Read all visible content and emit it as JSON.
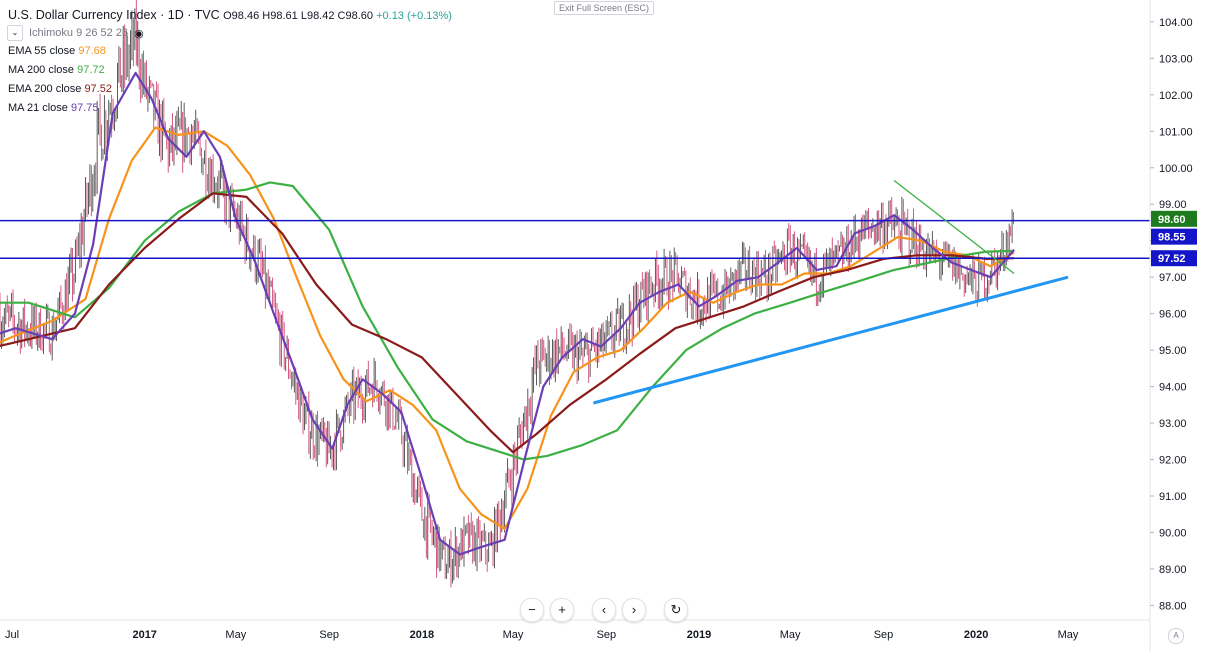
{
  "header": {
    "symbol": "U.S. Dollar Currency Index · 1D · TVC",
    "open": "O98.46",
    "high": "H98.61",
    "low": "L98.42",
    "close": "C98.60",
    "change": "+0.13 (+0.13%)"
  },
  "indicator_toggle": {
    "label": "Ichimoku 9 26 52 26"
  },
  "indicators": [
    {
      "name": "EMA 55 close",
      "value": "97.68",
      "color": "#f7931a"
    },
    {
      "name": "MA 200 close",
      "value": "97.72",
      "color": "#3cb043"
    },
    {
      "name": "EMA 200 close",
      "value": "97.52",
      "color": "#8b1a1a"
    },
    {
      "name": "MA 21 close",
      "value": "97.75",
      "color": "#6a3fb5"
    }
  ],
  "exit_fullscreen": "Exit Full Screen (ESC)",
  "toolbar": {
    "zoom_out": "−",
    "zoom_in": "+",
    "back": "‹",
    "forward": "›",
    "reset": "↻"
  },
  "auto_scale": "A",
  "chart_data": {
    "type": "line",
    "x_axis_labels": [
      "Jul",
      "2017",
      "May",
      "Sep",
      "2018",
      "May",
      "Sep",
      "2019",
      "May",
      "Sep",
      "2020",
      "May"
    ],
    "x_axis_label_dates": [
      "2016-07-01",
      "2017-01-01",
      "2017-05-01",
      "2017-09-01",
      "2018-01-01",
      "2018-05-01",
      "2018-09-01",
      "2019-01-01",
      "2019-05-01",
      "2019-09-01",
      "2020-01-01",
      "2020-05-01"
    ],
    "y_ticks": [
      "104.00",
      "103.00",
      "102.00",
      "101.00",
      "100.00",
      "99.00",
      "98.00",
      "97.00",
      "96.00",
      "95.00",
      "94.00",
      "93.00",
      "92.00",
      "91.00",
      "90.00",
      "89.00",
      "88.00"
    ],
    "ylim": [
      87.6,
      104.6
    ],
    "price_labels": [
      {
        "value": 98.6,
        "text": "98.60",
        "color": "#1e7a1e"
      },
      {
        "value": 98.55,
        "text": "98.55",
        "color": "#1414c8"
      },
      {
        "value": 97.52,
        "text": "97.52",
        "color": "#1414c8"
      }
    ],
    "horizontal_lines": [
      {
        "y": 98.55,
        "color": "#1414c8"
      },
      {
        "y": 97.52,
        "color": "#1414c8"
      }
    ],
    "trendlines": [
      {
        "name": "support",
        "color": "#2196f3",
        "x1": "2018-08-15",
        "y1": 93.55,
        "x2": "2020-05-01",
        "y2": 97.0
      },
      {
        "name": "resistance",
        "color": "#3cb043",
        "x1": "2019-09-15",
        "y1": 99.65,
        "x2": "2020-02-20",
        "y2": 97.1
      }
    ],
    "price": {
      "dates": [
        "2016-06-01",
        "2016-07-01",
        "2016-08-01",
        "2016-09-01",
        "2016-10-01",
        "2016-11-01",
        "2016-12-01",
        "2016-12-20",
        "2017-01-01",
        "2017-02-01",
        "2017-03-01",
        "2017-04-01",
        "2017-05-01",
        "2017-06-01",
        "2017-07-01",
        "2017-08-01",
        "2017-09-01",
        "2017-10-01",
        "2017-11-01",
        "2017-12-01",
        "2018-01-01",
        "2018-02-01",
        "2018-03-01",
        "2018-04-01",
        "2018-05-01",
        "2018-06-01",
        "2018-07-01",
        "2018-08-01",
        "2018-09-01",
        "2018-10-01",
        "2018-11-01",
        "2018-12-01",
        "2019-01-01",
        "2019-02-01",
        "2019-03-01",
        "2019-04-01",
        "2019-05-01",
        "2019-06-01",
        "2019-07-01",
        "2019-08-01",
        "2019-09-01",
        "2019-10-01",
        "2019-11-01",
        "2019-12-01",
        "2020-01-01",
        "2020-02-01",
        "2020-02-20"
      ],
      "close": [
        96.2,
        95.8,
        95.6,
        95.5,
        97.2,
        100.8,
        102.6,
        103.5,
        102.2,
        100.5,
        101.0,
        99.8,
        98.6,
        97.3,
        95.2,
        93.0,
        92.2,
        93.6,
        94.2,
        93.0,
        90.5,
        89.1,
        89.8,
        89.5,
        91.8,
        94.6,
        95.0,
        94.8,
        95.2,
        95.9,
        96.9,
        97.0,
        96.3,
        96.5,
        97.2,
        97.0,
        97.8,
        97.0,
        97.4,
        98.2,
        98.5,
        98.2,
        97.6,
        97.3,
        96.8,
        97.4,
        98.6
      ],
      "range": [
        1.0,
        1.2,
        1.1,
        1.0,
        1.2,
        1.6,
        1.6,
        1.4,
        1.4,
        1.3,
        1.2,
        1.2,
        1.1,
        1.2,
        1.1,
        1.1,
        1.1,
        1.1,
        1.0,
        1.0,
        1.2,
        1.1,
        1.0,
        1.0,
        1.2,
        1.2,
        1.1,
        1.1,
        1.1,
        1.1,
        1.1,
        1.0,
        1.1,
        1.0,
        1.0,
        1.0,
        1.0,
        1.1,
        1.0,
        1.0,
        1.1,
        1.1,
        1.0,
        1.0,
        1.0,
        1.0,
        0.6
      ]
    },
    "series": [
      {
        "id": "ema55",
        "color": "#f7931a",
        "dates": [
          "2016-06-01",
          "2016-07-15",
          "2016-09-01",
          "2016-10-15",
          "2016-11-15",
          "2016-12-15",
          "2017-01-15",
          "2017-02-15",
          "2017-03-20",
          "2017-04-20",
          "2017-05-20",
          "2017-06-20",
          "2017-07-20",
          "2017-08-20",
          "2017-09-20",
          "2017-10-20",
          "2017-11-20",
          "2017-12-20",
          "2018-01-20",
          "2018-02-20",
          "2018-03-20",
          "2018-04-20",
          "2018-05-20",
          "2018-06-20",
          "2018-07-20",
          "2018-08-20",
          "2018-09-20",
          "2018-10-20",
          "2018-11-20",
          "2018-12-20",
          "2019-01-20",
          "2019-02-20",
          "2019-03-20",
          "2019-04-20",
          "2019-05-20",
          "2019-06-20",
          "2019-07-20",
          "2019-08-20",
          "2019-09-20",
          "2019-10-20",
          "2019-11-20",
          "2019-12-20",
          "2020-01-20",
          "2020-02-20"
        ],
        "values": [
          95.0,
          95.4,
          95.8,
          96.4,
          98.6,
          100.2,
          101.1,
          100.9,
          101.0,
          100.6,
          99.8,
          98.6,
          97.0,
          95.4,
          94.2,
          93.6,
          93.9,
          93.5,
          92.8,
          91.2,
          90.5,
          90.1,
          91.2,
          93.2,
          94.4,
          94.8,
          95.0,
          95.6,
          96.3,
          96.6,
          96.3,
          96.6,
          96.8,
          96.8,
          97.1,
          97.1,
          97.3,
          97.7,
          98.1,
          98.0,
          97.7,
          97.6,
          97.3,
          97.68
        ]
      },
      {
        "id": "ma200",
        "color": "#3cb043",
        "dates": [
          "2016-06-01",
          "2016-08-01",
          "2016-10-01",
          "2016-11-15",
          "2017-01-01",
          "2017-02-15",
          "2017-04-01",
          "2017-05-15",
          "2017-06-15",
          "2017-07-15",
          "2017-09-01",
          "2017-10-15",
          "2017-12-01",
          "2018-01-15",
          "2018-03-01",
          "2018-04-15",
          "2018-05-15",
          "2018-06-15",
          "2018-08-01",
          "2018-09-15",
          "2018-11-01",
          "2018-12-15",
          "2019-02-01",
          "2019-03-15",
          "2019-05-01",
          "2019-06-15",
          "2019-08-01",
          "2019-09-15",
          "2019-11-01",
          "2019-12-15",
          "2020-01-15",
          "2020-02-20"
        ],
        "values": [
          96.3,
          96.3,
          95.9,
          96.7,
          98.0,
          98.8,
          99.3,
          99.4,
          99.6,
          99.5,
          98.3,
          96.2,
          94.5,
          93.1,
          92.5,
          92.2,
          92.0,
          92.1,
          92.4,
          92.8,
          94.0,
          95.0,
          95.6,
          96.0,
          96.3,
          96.6,
          96.9,
          97.2,
          97.4,
          97.6,
          97.7,
          97.72
        ]
      },
      {
        "id": "ema200",
        "color": "#8b1a1a",
        "dates": [
          "2016-06-01",
          "2016-08-01",
          "2016-10-01",
          "2016-11-15",
          "2017-01-01",
          "2017-02-15",
          "2017-04-01",
          "2017-05-15",
          "2017-07-01",
          "2017-08-15",
          "2017-10-01",
          "2017-11-15",
          "2018-01-01",
          "2018-02-15",
          "2018-04-01",
          "2018-05-01",
          "2018-06-01",
          "2018-07-15",
          "2018-09-01",
          "2018-10-15",
          "2018-12-01",
          "2019-01-15",
          "2019-03-01",
          "2019-04-15",
          "2019-06-01",
          "2019-07-15",
          "2019-09-01",
          "2019-10-15",
          "2019-12-01",
          "2020-01-15",
          "2020-02-20"
        ],
        "values": [
          95.0,
          95.3,
          95.6,
          96.8,
          97.8,
          98.6,
          99.3,
          99.2,
          98.2,
          96.8,
          95.7,
          95.3,
          94.8,
          93.8,
          92.8,
          92.2,
          92.7,
          93.5,
          94.2,
          94.9,
          95.6,
          95.9,
          96.2,
          96.6,
          97.0,
          97.2,
          97.5,
          97.6,
          97.6,
          97.5,
          97.52
        ]
      },
      {
        "id": "ma21",
        "color": "#6a3fb5",
        "dates": [
          "2016-06-01",
          "2016-07-15",
          "2016-09-01",
          "2016-10-01",
          "2016-10-25",
          "2016-11-20",
          "2016-12-20",
          "2017-01-10",
          "2017-02-01",
          "2017-02-25",
          "2017-03-20",
          "2017-04-10",
          "2017-05-01",
          "2017-05-25",
          "2017-06-20",
          "2017-07-15",
          "2017-08-10",
          "2017-09-05",
          "2017-09-25",
          "2017-10-15",
          "2017-11-10",
          "2017-12-05",
          "2018-01-01",
          "2018-01-25",
          "2018-02-20",
          "2018-03-20",
          "2018-04-20",
          "2018-05-15",
          "2018-06-10",
          "2018-07-05",
          "2018-08-01",
          "2018-08-25",
          "2018-09-20",
          "2018-10-15",
          "2018-11-10",
          "2018-12-05",
          "2019-01-01",
          "2019-01-25",
          "2019-02-20",
          "2019-03-20",
          "2019-04-15",
          "2019-05-10",
          "2019-06-05",
          "2019-07-01",
          "2019-07-25",
          "2019-08-20",
          "2019-09-15",
          "2019-10-10",
          "2019-11-05",
          "2019-11-30",
          "2019-12-25",
          "2020-01-20",
          "2020-02-20"
        ],
        "values": [
          95.3,
          95.6,
          95.3,
          96.0,
          97.9,
          101.5,
          102.6,
          101.9,
          100.8,
          100.3,
          101.0,
          100.3,
          98.6,
          97.5,
          96.0,
          94.6,
          93.1,
          92.3,
          93.5,
          94.2,
          93.8,
          93.3,
          91.5,
          89.8,
          89.4,
          89.6,
          89.8,
          91.9,
          94.0,
          94.8,
          95.3,
          95.1,
          95.6,
          96.3,
          96.6,
          96.8,
          96.2,
          96.5,
          96.9,
          97.0,
          97.4,
          97.8,
          97.2,
          97.3,
          98.2,
          98.4,
          98.7,
          98.3,
          97.8,
          97.4,
          97.2,
          97.0,
          97.75
        ]
      }
    ]
  }
}
